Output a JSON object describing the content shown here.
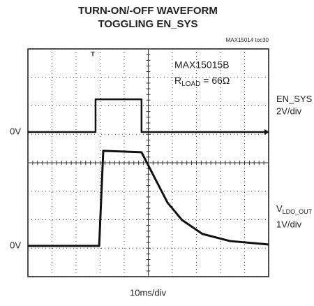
{
  "chart_data": {
    "type": "line",
    "title_lines": [
      "TURN-ON/-OFF WAVEFORM",
      "TOGGLING EN_SYS"
    ],
    "figure_id": "MAX15014 toc30",
    "part": "MAX15015B",
    "load": {
      "symbol": "R",
      "sub": "LOAD",
      "rest": " = 66Ω"
    },
    "trigger": "T",
    "x_label": "10ms/div",
    "xlim": [
      0,
      10
    ],
    "ylim": [
      0,
      8
    ],
    "xticks": [
      0,
      1,
      2,
      3,
      4,
      5,
      6,
      7,
      8,
      9,
      10
    ],
    "yticks": [
      0,
      1,
      2,
      3,
      4,
      5,
      6,
      7,
      8
    ],
    "grid": true,
    "series": [
      {
        "name": "EN_SYS",
        "scale": "2V/div",
        "ground_label": "0V",
        "ground": 5.08,
        "color": "#111111",
        "x": [
          0,
          2.81,
          2.81,
          4.72,
          4.72,
          10
        ],
        "values": [
          5.08,
          5.08,
          6.23,
          6.23,
          5.08,
          5.08
        ]
      },
      {
        "name": "V",
        "name_sub": "LDO_OUT",
        "scale": "1V/div",
        "ground_label": "0V",
        "ground": 1.08,
        "color": "#111111",
        "x": [
          0,
          2.96,
          3.13,
          4.72,
          5.2,
          5.8,
          6.4,
          7.25,
          8.4,
          10
        ],
        "values": [
          1.08,
          1.08,
          4.42,
          4.37,
          3.58,
          2.6,
          1.99,
          1.5,
          1.25,
          1.13
        ]
      }
    ]
  }
}
